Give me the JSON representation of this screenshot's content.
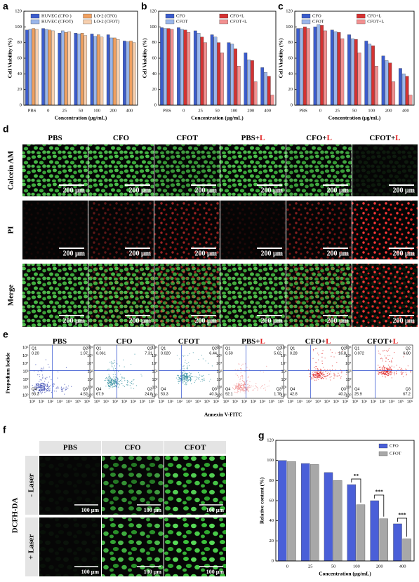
{
  "chart_data": [
    {
      "type": "bar",
      "panel": "a",
      "y_label": "Cell Viability (%)",
      "x_label": "Concentration (μg/mL)",
      "categories": [
        "PBS",
        "0",
        "25",
        "50",
        "100",
        "200",
        "400"
      ],
      "series": [
        {
          "name": "HUVEC (CFO )",
          "color": "#3b5ccc",
          "values": [
            96,
            98,
            92,
            92,
            91,
            90,
            82
          ]
        },
        {
          "name": "HUVEC (CFOT)",
          "color": "#9ab6ea",
          "values": [
            97,
            97,
            95,
            91,
            88,
            86,
            81
          ]
        },
        {
          "name": "LO-2 (CFO)",
          "color": "#f0a060",
          "values": [
            98,
            96,
            93,
            92,
            90,
            86,
            82
          ]
        },
        {
          "name": "LO-2 (CFOT)",
          "color": "#f7cfae",
          "values": [
            97,
            95,
            94,
            89,
            87,
            84,
            80
          ]
        }
      ],
      "ylim": [
        0,
        120
      ],
      "yticks": [
        0,
        20,
        40,
        60,
        80,
        100,
        120
      ],
      "legend": "top"
    },
    {
      "type": "bar",
      "panel": "b",
      "y_label": "Cell Viability (%)",
      "x_label": "Concentration (μg/mL)",
      "categories": [
        "PBS",
        "0",
        "25",
        "50",
        "100",
        "200",
        "400"
      ],
      "series": [
        {
          "name": "CFO",
          "color": "#3b5ccc",
          "values": [
            99,
            99,
            95,
            90,
            80,
            67,
            48
          ]
        },
        {
          "name": "CFOT",
          "color": "#9ab6ea",
          "values": [
            98,
            97,
            92,
            87,
            78,
            58,
            42
          ]
        },
        {
          "name": "CFO+L",
          "color": "#d43232",
          "values": [
            98,
            96,
            87,
            80,
            72,
            57,
            37
          ]
        },
        {
          "name": "CFOT+L",
          "color": "#f29090",
          "values": [
            97,
            93,
            80,
            67,
            50,
            30,
            13
          ]
        }
      ],
      "ylim": [
        0,
        120
      ],
      "yticks": [
        0,
        20,
        40,
        60,
        80,
        100,
        120
      ],
      "legend": "top"
    },
    {
      "type": "bar",
      "panel": "c",
      "y_label": "Cell Viability (%)",
      "x_label": "Concentration (μg/mL)",
      "categories": [
        "PBS",
        "0",
        "25",
        "50",
        "100",
        "200",
        "400"
      ],
      "series": [
        {
          "name": "CFO",
          "color": "#3b5ccc",
          "values": [
            98,
            100,
            96,
            90,
            82,
            63,
            47
          ]
        },
        {
          "name": "CFOT",
          "color": "#9ab6ea",
          "values": [
            98,
            103,
            94,
            85,
            78,
            57,
            40
          ]
        },
        {
          "name": "CFO+L",
          "color": "#d43232",
          "values": [
            100,
            102,
            93,
            84,
            76,
            54,
            37
          ]
        },
        {
          "name": "CFOT+L",
          "color": "#f29090",
          "values": [
            98,
            95,
            85,
            67,
            50,
            30,
            13
          ]
        }
      ],
      "ylim": [
        0,
        120
      ],
      "yticks": [
        0,
        20,
        40,
        60,
        80,
        100,
        120
      ],
      "legend": "top"
    },
    {
      "type": "bar",
      "panel": "g",
      "y_label": "Relative content (%)",
      "x_label": "Concentration (μg/mL)",
      "categories": [
        "0",
        "25",
        "50",
        "100",
        "200",
        "400"
      ],
      "series": [
        {
          "name": "CFO",
          "color": "#4a5fd8",
          "values": [
            100,
            97,
            88,
            76,
            60,
            37
          ]
        },
        {
          "name": "CFOT",
          "color": "#a8a8a8",
          "values": [
            99,
            96,
            80,
            56,
            42,
            22
          ]
        }
      ],
      "ylim": [
        0,
        120
      ],
      "yticks": [
        0,
        20,
        40,
        60,
        80,
        100,
        120
      ],
      "legend": "upper right",
      "annotations": [
        {
          "category": "100",
          "text": "**"
        },
        {
          "category": "200",
          "text": "***"
        },
        {
          "category": "400",
          "text": "***"
        }
      ]
    }
  ],
  "panel_d": {
    "label": "d",
    "columns": [
      {
        "text": "PBS"
      },
      {
        "text": "CFO"
      },
      {
        "text": "CFOT"
      },
      {
        "text": "PBS+",
        "laser": "L"
      },
      {
        "text": "CFO+",
        "laser": "L"
      },
      {
        "text": "CFOT+",
        "laser": "L"
      }
    ],
    "rows": [
      "Calcein AM",
      "PI",
      "Merge"
    ],
    "scale_bar": "200 μm"
  },
  "panel_e": {
    "label": "e",
    "y_label": "Propodium Iodide",
    "x_label": "Annexin V-FITC",
    "quadrant_names": [
      "Q1",
      "Q2",
      "Q3",
      "Q4"
    ],
    "axis_ticks": [
      "10⁰",
      "10¹",
      "10²",
      "10³",
      "10⁴",
      "10⁵",
      "10⁶"
    ],
    "plots": [
      {
        "title": {
          "text": "PBS"
        },
        "q": [
          "0.20",
          "1.97",
          "4.52",
          "93.3"
        ]
      },
      {
        "title": {
          "text": "CFO"
        },
        "q": [
          "0.061",
          "7.31",
          "24.8",
          "67.9"
        ]
      },
      {
        "title": {
          "text": "CFOT"
        },
        "q": [
          "0.020",
          "6.44",
          "40.3",
          "53.3"
        ]
      },
      {
        "title": {
          "text": "PBS+",
          "laser": "L"
        },
        "q": [
          "0.50",
          "5.62",
          "1.78",
          "92.1"
        ]
      },
      {
        "title": {
          "text": "CFO+",
          "laser": "L"
        },
        "q": [
          "0.28",
          "16.8",
          "40.2",
          "42.8"
        ]
      },
      {
        "title": {
          "text": "CFOT+",
          "laser": "L"
        },
        "q": [
          "0.072",
          "6.80",
          "67.2",
          "25.9"
        ]
      }
    ]
  },
  "panel_f": {
    "label": "f",
    "y_label": "DCFH-DA",
    "columns": [
      "PBS",
      "CFO",
      "CFOT"
    ],
    "rows": [
      "- Laser",
      "+ Laser"
    ],
    "scale_bar": "100 μm"
  }
}
